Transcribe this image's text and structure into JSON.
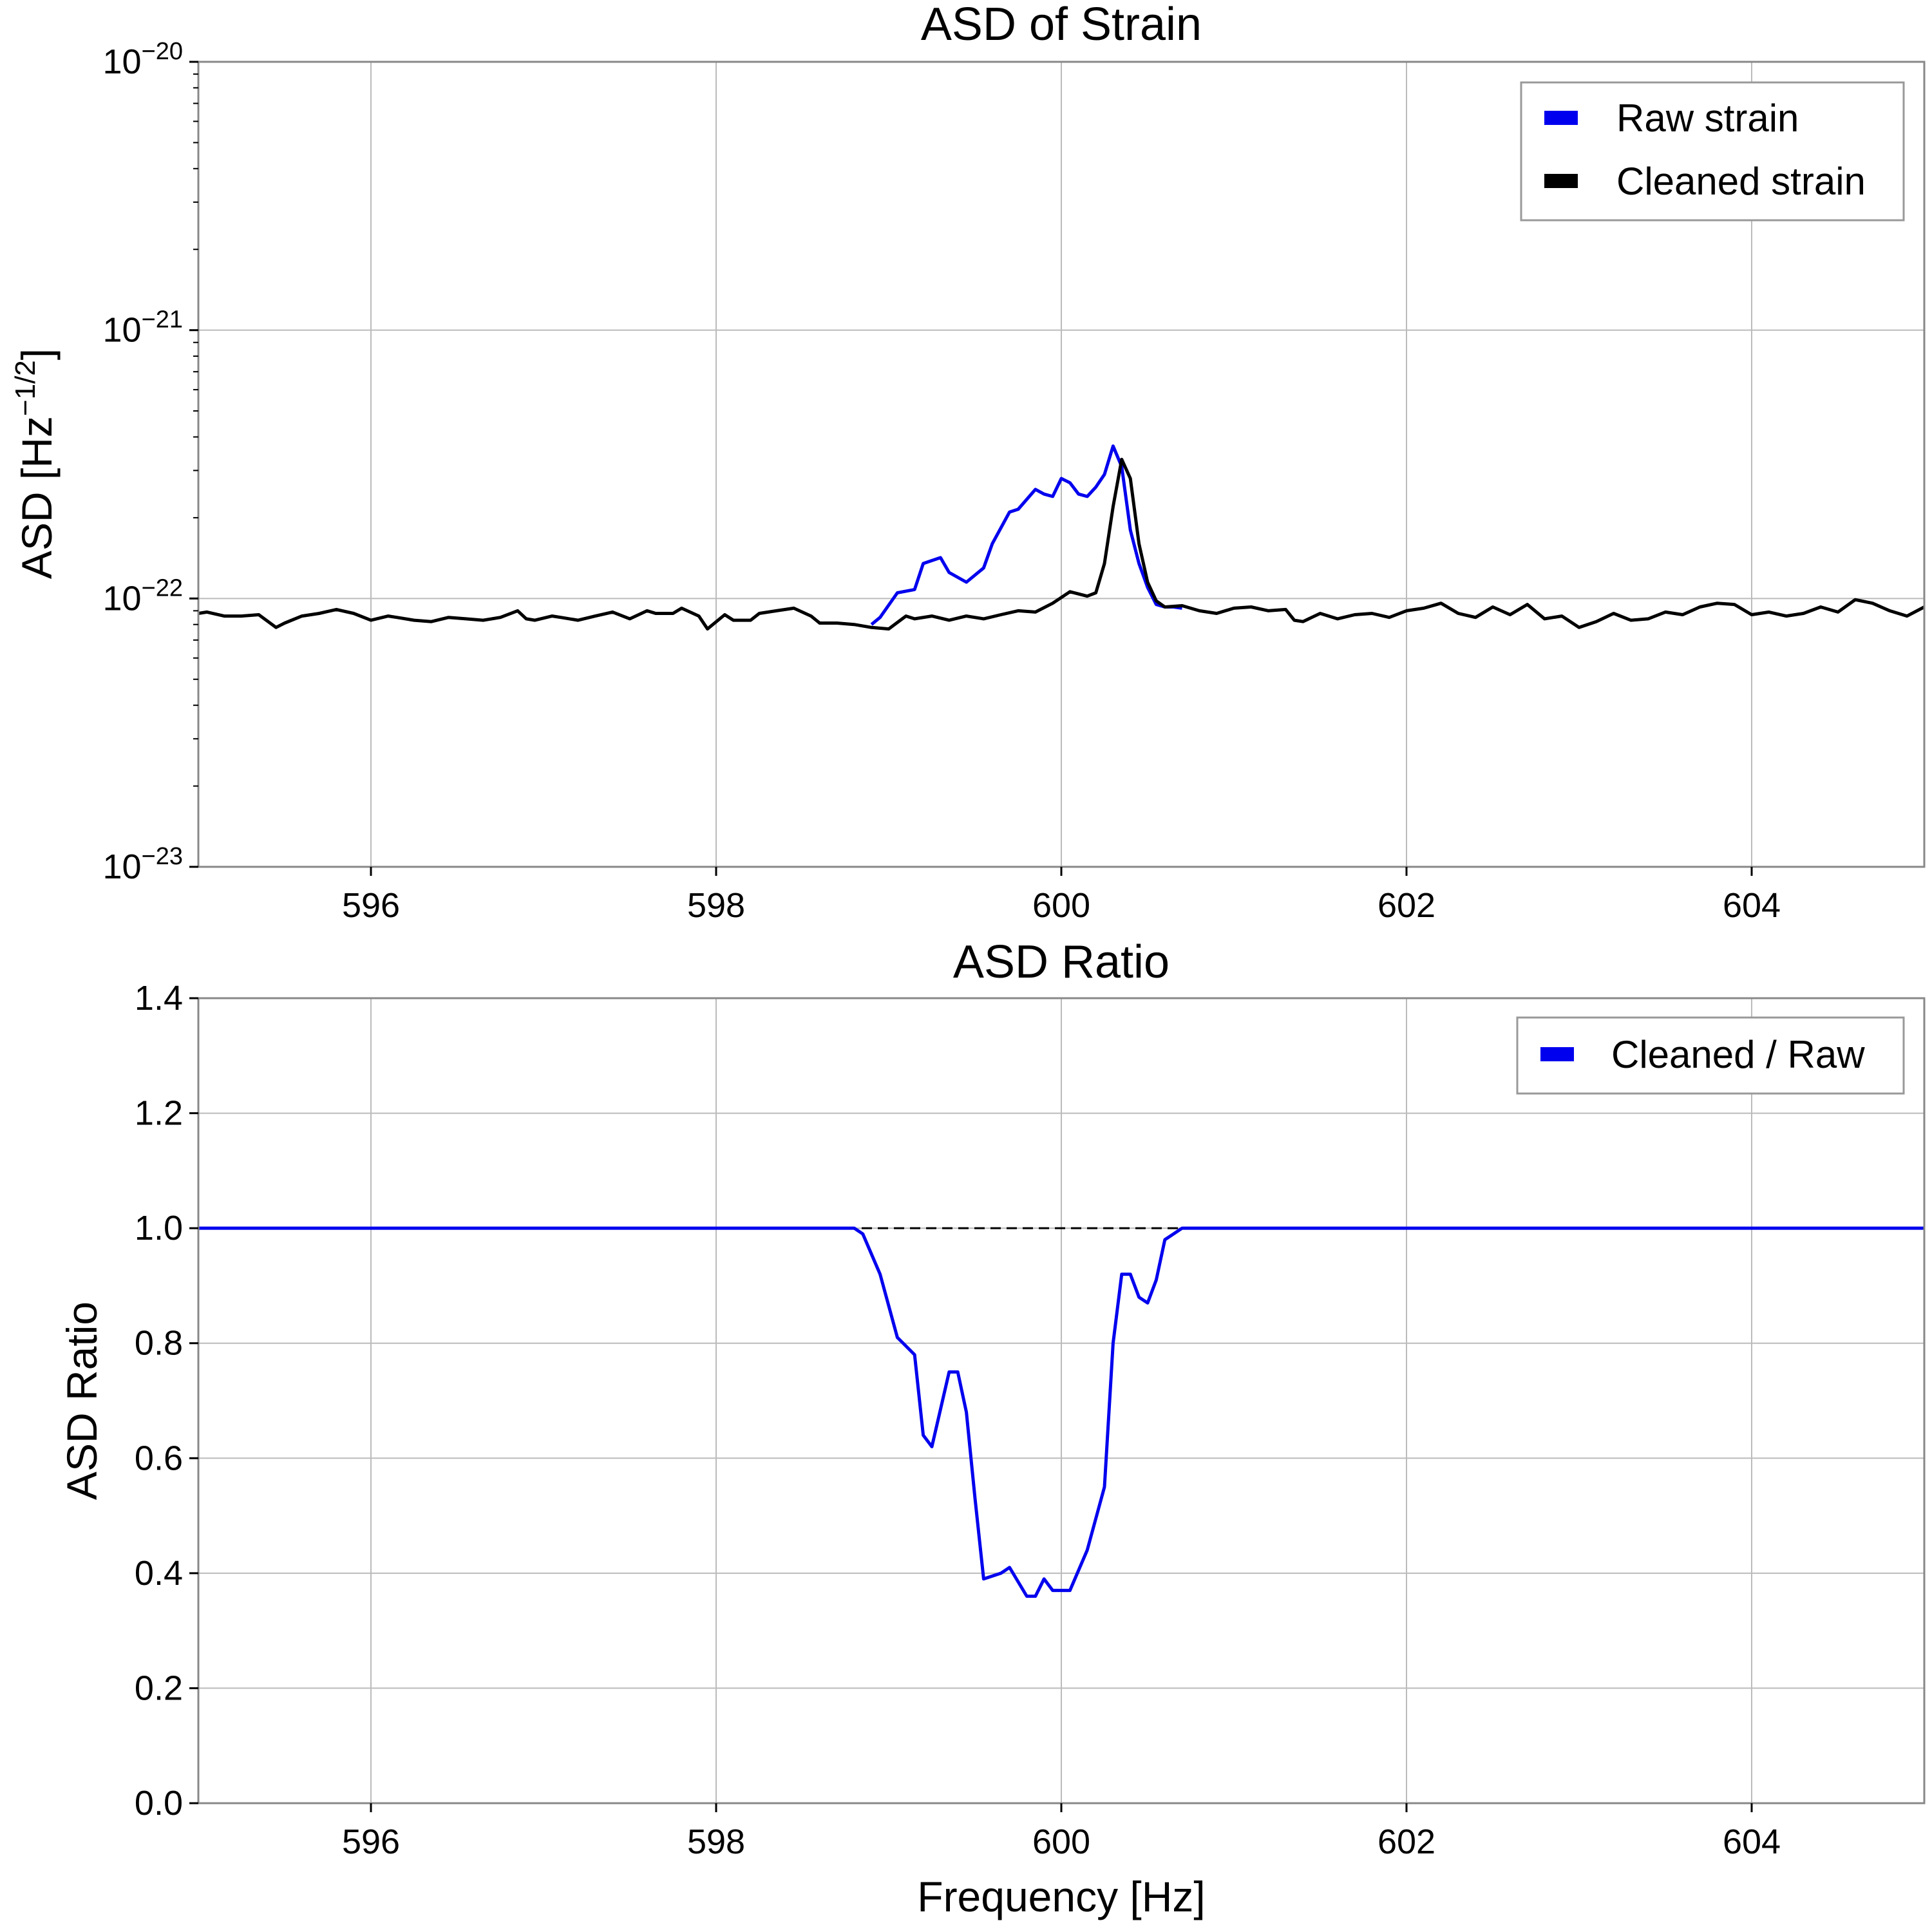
{
  "chart_data": [
    {
      "type": "line",
      "title": "ASD of Strain",
      "xlabel": "",
      "ylabel": "ASD [Hz⁻¹ᐟ²]",
      "ylabel_parts": {
        "base": "ASD [Hz",
        "exponent": "−1/2",
        "close": "]"
      },
      "xlim": [
        595,
        605
      ],
      "ylim": [
        1e-23,
        1e-20
      ],
      "yscale": "log",
      "grid": true,
      "legend_position": "top-right",
      "xticks": [
        596,
        598,
        600,
        602,
        604
      ],
      "xtick_labels": [
        "596",
        "598",
        "600",
        "602",
        "604"
      ],
      "yticks": [
        1e-23,
        1e-22,
        1e-21,
        1e-20
      ],
      "ytick_labels": [
        {
          "base": "10",
          "exponent": "−23"
        },
        {
          "base": "10",
          "exponent": "−22"
        },
        {
          "base": "10",
          "exponent": "−21"
        },
        {
          "base": "10",
          "exponent": "−20"
        }
      ],
      "series": [
        {
          "name": "Raw strain",
          "color": "#0000ee",
          "x": [
            598.9,
            598.95,
            599.05,
            599.15,
            599.2,
            599.3,
            599.35,
            599.45,
            599.55,
            599.6,
            599.7,
            599.75,
            599.85,
            599.9,
            599.95,
            600.0,
            600.05,
            600.1,
            600.15,
            600.2,
            600.25,
            600.3,
            600.35,
            600.4,
            600.45,
            600.5,
            600.55,
            600.6,
            600.65,
            600.7
          ],
          "y": [
            8e-23,
            8.5e-23,
            1.05e-22,
            1.08e-22,
            1.35e-22,
            1.42e-22,
            1.25e-22,
            1.15e-22,
            1.3e-22,
            1.6e-22,
            2.1e-22,
            2.15e-22,
            2.55e-22,
            2.45e-22,
            2.4e-22,
            2.8e-22,
            2.7e-22,
            2.45e-22,
            2.4e-22,
            2.6e-22,
            2.9e-22,
            3.7e-22,
            3.1e-22,
            1.8e-22,
            1.35e-22,
            1.1e-22,
            9.5e-23,
            9.3e-23,
            9.3e-23,
            9.2e-23
          ]
        },
        {
          "name": "Cleaned strain",
          "color": "#000000",
          "x": [
            595.0,
            595.05,
            595.15,
            595.25,
            595.35,
            595.45,
            595.5,
            595.6,
            595.7,
            595.8,
            595.9,
            596.0,
            596.1,
            596.15,
            596.25,
            596.35,
            596.45,
            596.55,
            596.65,
            596.75,
            596.85,
            596.9,
            596.95,
            597.05,
            597.1,
            597.2,
            597.3,
            597.4,
            597.5,
            597.6,
            597.65,
            597.75,
            597.8,
            597.9,
            597.95,
            598.05,
            598.1,
            598.2,
            598.25,
            598.35,
            598.45,
            598.55,
            598.6,
            598.7,
            598.8,
            598.9,
            599.0,
            599.1,
            599.15,
            599.25,
            599.35,
            599.45,
            599.55,
            599.65,
            599.75,
            599.85,
            599.95,
            600.05,
            600.15,
            600.2,
            600.25,
            600.3,
            600.35,
            600.4,
            600.45,
            600.5,
            600.55,
            600.6,
            600.7,
            600.8,
            600.9,
            601.0,
            601.1,
            601.2,
            601.3,
            601.35,
            601.4,
            601.5,
            601.6,
            601.7,
            601.8,
            601.9,
            602.0,
            602.1,
            602.2,
            602.3,
            602.4,
            602.5,
            602.6,
            602.7,
            602.8,
            602.9,
            603.0,
            603.1,
            603.2,
            603.3,
            603.4,
            603.5,
            603.6,
            603.7,
            603.8,
            603.9,
            604.0,
            604.1,
            604.2,
            604.3,
            604.4,
            604.5,
            604.6,
            604.7,
            604.8,
            604.9,
            605.0
          ],
          "y": [
            8.8e-23,
            8.9e-23,
            8.6e-23,
            8.6e-23,
            8.7e-23,
            7.8e-23,
            8.1e-23,
            8.6e-23,
            8.8e-23,
            9.1e-23,
            8.8e-23,
            8.3e-23,
            8.6e-23,
            8.5e-23,
            8.3e-23,
            8.2e-23,
            8.5e-23,
            8.4e-23,
            8.3e-23,
            8.5e-23,
            9e-23,
            8.4e-23,
            8.3e-23,
            8.6e-23,
            8.5e-23,
            8.3e-23,
            8.6e-23,
            8.9e-23,
            8.4e-23,
            9e-23,
            8.8e-23,
            8.8e-23,
            9.2e-23,
            8.6e-23,
            7.7e-23,
            8.7e-23,
            8.3e-23,
            8.3e-23,
            8.8e-23,
            9e-23,
            9.2e-23,
            8.6e-23,
            8.1e-23,
            8.1e-23,
            8e-23,
            7.8e-23,
            7.7e-23,
            8.6e-23,
            8.4e-23,
            8.6e-23,
            8.3e-23,
            8.6e-23,
            8.4e-23,
            8.7e-23,
            9e-23,
            8.9e-23,
            9.6e-23,
            1.06e-22,
            1.02e-22,
            1.05e-22,
            1.35e-22,
            2.2e-22,
            3.3e-22,
            2.8e-22,
            1.6e-22,
            1.15e-22,
            9.8e-23,
            9.3e-23,
            9.4e-23,
            9e-23,
            8.8e-23,
            9.2e-23,
            9.3e-23,
            9e-23,
            9.1e-23,
            8.3e-23,
            8.2e-23,
            8.8e-23,
            8.4e-23,
            8.7e-23,
            8.8e-23,
            8.5e-23,
            9e-23,
            9.2e-23,
            9.6e-23,
            8.8e-23,
            8.5e-23,
            9.3e-23,
            8.7e-23,
            9.5e-23,
            8.4e-23,
            8.6e-23,
            7.8e-23,
            8.2e-23,
            8.8e-23,
            8.3e-23,
            8.4e-23,
            8.9e-23,
            8.7e-23,
            9.3e-23,
            9.6e-23,
            9.5e-23,
            8.7e-23,
            8.9e-23,
            8.6e-23,
            8.8e-23,
            9.3e-23,
            8.9e-23,
            9.9e-23,
            9.6e-23,
            9e-23,
            8.6e-23,
            9.3e-23
          ]
        }
      ]
    },
    {
      "type": "line",
      "title": "ASD Ratio",
      "xlabel": "Frequency [Hz]",
      "ylabel": "ASD Ratio",
      "xlim": [
        595,
        605
      ],
      "ylim": [
        0.0,
        1.4
      ],
      "grid": true,
      "legend_position": "top-right",
      "xticks": [
        596,
        598,
        600,
        602,
        604
      ],
      "xtick_labels": [
        "596",
        "598",
        "600",
        "602",
        "604"
      ],
      "yticks": [
        0.0,
        0.2,
        0.4,
        0.6,
        0.8,
        1.0,
        1.2,
        1.4
      ],
      "ytick_labels": [
        "0.0",
        "0.2",
        "0.4",
        "0.6",
        "0.8",
        "1.0",
        "1.2",
        "1.4"
      ],
      "reference_line": {
        "y": 1.0,
        "xmin": 598.75,
        "xmax": 600.85,
        "color": "#000000",
        "style": "dashed"
      },
      "series": [
        {
          "name": "Cleaned / Raw",
          "color": "#0000ee",
          "x": [
            595.0,
            598.8,
            598.85,
            598.95,
            599.05,
            599.15,
            599.2,
            599.25,
            599.35,
            599.4,
            599.45,
            599.5,
            599.55,
            599.65,
            599.7,
            599.8,
            599.85,
            599.9,
            599.95,
            600.0,
            600.05,
            600.15,
            600.25,
            600.3,
            600.35,
            600.4,
            600.45,
            600.5,
            600.55,
            600.6,
            600.65,
            600.7,
            600.75,
            605.0
          ],
          "y": [
            1.0,
            1.0,
            0.99,
            0.92,
            0.81,
            0.78,
            0.64,
            0.62,
            0.75,
            0.75,
            0.68,
            0.53,
            0.39,
            0.4,
            0.41,
            0.36,
            0.36,
            0.39,
            0.37,
            0.37,
            0.37,
            0.44,
            0.55,
            0.8,
            0.92,
            0.92,
            0.88,
            0.87,
            0.91,
            0.98,
            0.99,
            1.0,
            1.0,
            1.0
          ]
        }
      ]
    }
  ]
}
